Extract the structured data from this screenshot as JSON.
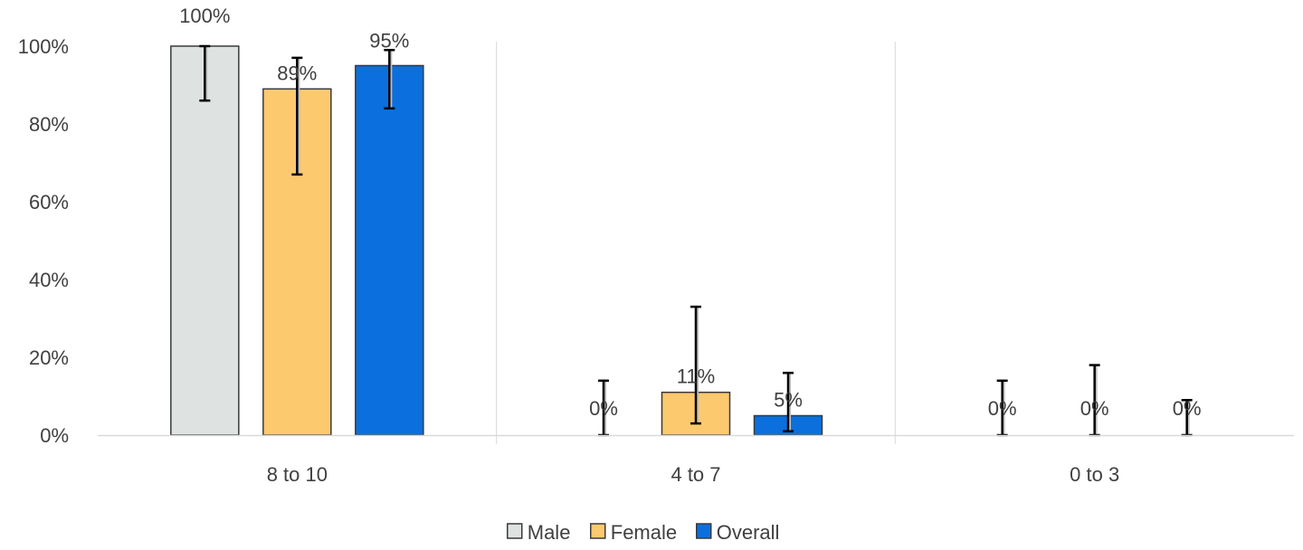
{
  "chart_data": {
    "type": "bar",
    "title": "",
    "xlabel": "",
    "ylabel": "",
    "ylim": [
      0,
      1
    ],
    "y_ticks": [
      "0%",
      "20%",
      "40%",
      "60%",
      "80%",
      "100%"
    ],
    "y_tick_values": [
      0,
      0.2,
      0.4,
      0.6,
      0.8,
      1.0
    ],
    "categories": [
      "8 to 10",
      "4 to 7",
      "0 to 3"
    ],
    "grid": "vertical category separators",
    "legend_position": "bottom",
    "series": [
      {
        "name": "Male",
        "color": "#dee3e2",
        "values": [
          1.0,
          0.0,
          0.0
        ],
        "labels": [
          "100%",
          "0%",
          "0%"
        ],
        "error_low": [
          0.86,
          0.0,
          0.0
        ],
        "error_high": [
          1.0,
          0.14,
          0.14
        ]
      },
      {
        "name": "Female",
        "color": "#fcc96f",
        "values": [
          0.89,
          0.11,
          0.0
        ],
        "labels": [
          "89%",
          "11%",
          "0%"
        ],
        "error_low": [
          0.67,
          0.03,
          0.0
        ],
        "error_high": [
          0.97,
          0.33,
          0.18
        ]
      },
      {
        "name": "Overall",
        "color": "#0b6fdd",
        "values": [
          0.95,
          0.05,
          0.0
        ],
        "labels": [
          "95%",
          "5%",
          "0%"
        ],
        "error_low": [
          0.84,
          0.01,
          0.0
        ],
        "error_high": [
          0.99,
          0.16,
          0.09
        ]
      }
    ]
  }
}
